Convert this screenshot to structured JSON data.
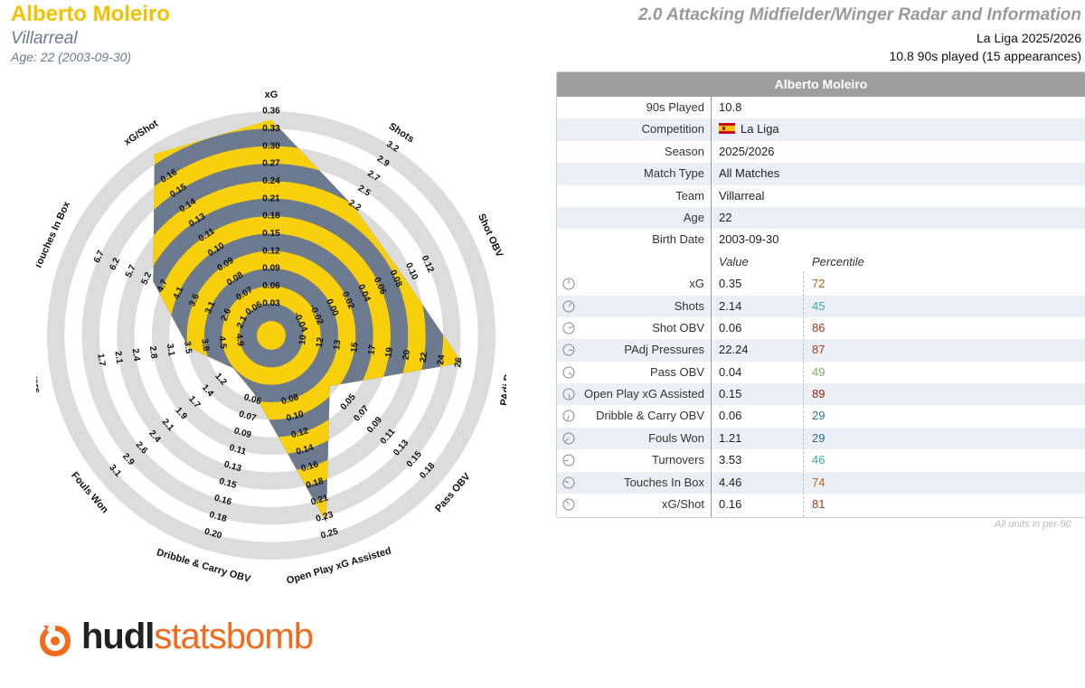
{
  "header": {
    "player_name": "Alberto Moleiro",
    "team": "Villarreal",
    "age_line": "Age: 22 (2003-09-30)",
    "title": "2.0 Attacking Midfielder/Winger Radar and Information",
    "season_line": "La Liga 2025/2026",
    "played_line": "10.8 90s played (15 appearances)"
  },
  "colors": {
    "accent_yellow": "#f7cf0a",
    "slate": "#6b7a8f",
    "ring_gray": "#dcdcdc",
    "brand_orange": "#f26b1d"
  },
  "chart_data": {
    "type": "radar",
    "axes": [
      {
        "name": "xG",
        "ticks": [
          "0.03",
          "0.06",
          "0.09",
          "0.12",
          "0.15",
          "0.18",
          "0.21",
          "0.24",
          "0.27",
          "0.30",
          "0.33",
          "0.36"
        ],
        "value": 0.35
      },
      {
        "name": "Shots",
        "ticks": [
          "",
          "",
          "",
          "",
          "",
          "",
          "",
          "2.2",
          "2.5",
          "2.7",
          "2.9",
          "3.2"
        ],
        "value": 2.14
      },
      {
        "name": "Shot OBV",
        "ticks": [
          "-0.04",
          "-0.02",
          "0.00",
          "0.02",
          "0.04",
          "0.06",
          "0.08",
          "0.10",
          "0.12",
          "",
          "",
          ""
        ],
        "value": 0.06
      },
      {
        "name": "PAdj Pressures",
        "ticks": [
          "10",
          "12",
          "13",
          "15",
          "17",
          "19",
          "20",
          "22",
          "24",
          "26",
          "",
          ""
        ],
        "value": 22.24
      },
      {
        "name": "Pass OBV",
        "ticks": [
          "",
          "",
          "",
          "",
          "0.05",
          "0.07",
          "0.09",
          "0.11",
          "0.13",
          "0.15",
          "0.18",
          ""
        ],
        "value": 0.04
      },
      {
        "name": "Open Play xG Assisted",
        "ticks": [
          "",
          "",
          "0.08",
          "0.10",
          "0.12",
          "0.14",
          "0.16",
          "0.18",
          "0.21",
          "0.23",
          "0.25",
          ""
        ],
        "value": 0.15
      },
      {
        "name": "Dribble & Carry OBV",
        "ticks": [
          "",
          "",
          "0.06",
          "0.07",
          "0.09",
          "0.11",
          "0.13",
          "0.15",
          "0.16",
          "0.18",
          "0.20",
          ""
        ],
        "value": 0.06
      },
      {
        "name": "Fouls Won",
        "ticks": [
          "",
          "",
          "1.2",
          "1.4",
          "1.7",
          "1.9",
          "2.1",
          "2.4",
          "2.6",
          "2.9",
          "3.1",
          ""
        ],
        "value": 1.21
      },
      {
        "name": "Turnovers",
        "ticks": [
          "4.9",
          "4.5",
          "3.8",
          "3.5",
          "3.1",
          "2.8",
          "2.4",
          "2.1",
          "1.7",
          "",
          "",
          ""
        ],
        "value": 3.53
      },
      {
        "name": "Touches In Box",
        "ticks": [
          "2.1",
          "2.6",
          "3.1",
          "3.6",
          "4.1",
          "4.7",
          "5.2",
          "5.7",
          "6.2",
          "6.7",
          "",
          ""
        ],
        "value": 4.46
      },
      {
        "name": "xG/Shot",
        "ticks": [
          "0.06",
          "0.07",
          "0.08",
          "0.09",
          "0.10",
          "0.11",
          "0.13",
          "0.14",
          "0.15",
          "0.16",
          "",
          ""
        ],
        "value": 0.16
      }
    ],
    "inner_ticks": [
      "0.04",
      "0.06",
      "0.02",
      "0.04",
      "0.00",
      "0.01",
      "0.02",
      "0.04",
      "0.06",
      "0.08"
    ],
    "series": [
      {
        "values": [
          0.35,
          2.14,
          0.06,
          22.24,
          0.04,
          0.15,
          0.06,
          1.21,
          3.53,
          4.46,
          0.16
        ]
      }
    ],
    "fill_fraction": [
      0.96,
      0.66,
      0.62,
      0.85,
      0.3,
      0.86,
      0.22,
      0.17,
      0.33,
      0.55,
      0.96
    ]
  },
  "table": {
    "title": "Alberto Moleiro",
    "info_rows": [
      {
        "label": "90s Played",
        "value": "10.8"
      },
      {
        "label": "Competition",
        "value": "La Liga"
      },
      {
        "label": "Season",
        "value": "2025/2026"
      },
      {
        "label": "Match Type",
        "value": "All Matches"
      },
      {
        "label": "Team",
        "value": "Villarreal"
      },
      {
        "label": "Age",
        "value": "22"
      },
      {
        "label": "Birth Date",
        "value": "2003-09-30"
      }
    ],
    "col_value": "Value",
    "col_percentile": "Percentile",
    "stat_rows": [
      {
        "label": "xG",
        "value": "0.35",
        "pct": "72",
        "color": "#b8621b",
        "icon": "gauge-icon"
      },
      {
        "label": "Shots",
        "value": "2.14",
        "pct": "45",
        "color": "#3fa6a6",
        "icon": "gauge-icon"
      },
      {
        "label": "Shot OBV",
        "value": "0.06",
        "pct": "86",
        "color": "#a83a1f",
        "icon": "gauge-icon"
      },
      {
        "label": "PAdj Pressures",
        "value": "22.24",
        "pct": "87",
        "color": "#a83a1f",
        "icon": "gauge-icon"
      },
      {
        "label": "Pass OBV",
        "value": "0.04",
        "pct": "49",
        "color": "#7fae6a",
        "icon": "gauge-icon"
      },
      {
        "label": "Open Play xG Assisted",
        "value": "0.15",
        "pct": "89",
        "color": "#9a2414",
        "icon": "gauge-icon"
      },
      {
        "label": "Dribble & Carry OBV",
        "value": "0.06",
        "pct": "29",
        "color": "#2f6e8a",
        "icon": "gauge-icon"
      },
      {
        "label": "Fouls Won",
        "value": "1.21",
        "pct": "29",
        "color": "#2f6e8a",
        "icon": "gauge-icon"
      },
      {
        "label": "Turnovers",
        "value": "3.53",
        "pct": "46",
        "color": "#3fa6a6",
        "icon": "gauge-icon"
      },
      {
        "label": "Touches In Box",
        "value": "4.46",
        "pct": "74",
        "color": "#b8621b",
        "icon": "gauge-icon"
      },
      {
        "label": "xG/Shot",
        "value": "0.16",
        "pct": "81",
        "color": "#a83a1f",
        "icon": "gauge-icon"
      }
    ],
    "units_note": "All units in per-90"
  },
  "logo": {
    "hudl": "hudl",
    "statsbomb": "statsbomb"
  }
}
